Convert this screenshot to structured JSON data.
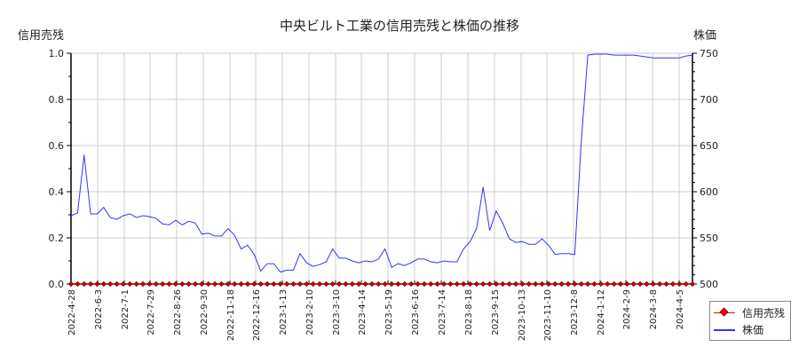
{
  "title": "中央ビルト工業の信用売残と株価の推移",
  "left_axis_label": "信用売残",
  "right_axis_label": "株価",
  "legend": [
    {
      "label": "信用売残",
      "color": "#ff0000",
      "marker": "diamond"
    },
    {
      "label": "株価",
      "color": "#3333ff",
      "marker": "line"
    }
  ],
  "chart_data": {
    "type": "line",
    "title": "中央ビルト工業の信用売残と株価の推移",
    "xlabel": "",
    "ylabel_left": "信用売残",
    "ylabel_right": "株価",
    "ylim_left": [
      0.0,
      1.0
    ],
    "ylim_right": [
      500,
      750
    ],
    "yticks_left": [
      "0.0",
      "0.2",
      "0.4",
      "0.6",
      "0.8",
      "1.0"
    ],
    "yticks_right": [
      "500",
      "550",
      "600",
      "650",
      "700",
      "750"
    ],
    "xtick_labels": [
      "2022-4-28",
      "2022-6-3",
      "2022-7-1",
      "2022-7-29",
      "2022-8-26",
      "2022-9-30",
      "2022-11-18",
      "2022-12-16",
      "2023-1-13",
      "2023-2-10",
      "2023-3-10",
      "2023-4-14",
      "2023-5-19",
      "2023-6-16",
      "2023-7-14",
      "2023-8-18",
      "2023-9-15",
      "2023-10-13",
      "2023-11-10",
      "2023-12-8",
      "2024-1-12",
      "2024-2-9",
      "2024-3-8",
      "2024-4-5"
    ],
    "grid": true,
    "legend_position": "bottom-right",
    "series": [
      {
        "name": "信用売残",
        "axis": "left",
        "color": "#ff0000",
        "values_note": "all weekly points at 0",
        "values": [
          0,
          0,
          0,
          0,
          0,
          0,
          0,
          0,
          0,
          0,
          0,
          0,
          0,
          0,
          0,
          0,
          0,
          0,
          0,
          0,
          0,
          0,
          0,
          0,
          0,
          0,
          0,
          0,
          0,
          0,
          0,
          0,
          0,
          0,
          0,
          0,
          0,
          0,
          0,
          0,
          0,
          0,
          0,
          0,
          0,
          0,
          0,
          0,
          0,
          0,
          0,
          0,
          0,
          0,
          0,
          0,
          0,
          0,
          0,
          0,
          0,
          0,
          0,
          0,
          0,
          0,
          0,
          0,
          0,
          0,
          0,
          0,
          0,
          0,
          0,
          0,
          0,
          0,
          0,
          0,
          0,
          0,
          0,
          0,
          0,
          0,
          0,
          0,
          0,
          0,
          0,
          0,
          0,
          0,
          0,
          0
        ]
      },
      {
        "name": "株価",
        "axis": "right",
        "color": "#3333ff",
        "values": [
          574,
          577,
          640,
          576,
          576,
          583,
          572,
          570,
          574,
          576,
          572,
          574,
          573,
          571,
          565,
          564,
          569,
          564,
          568,
          566,
          554,
          555,
          552,
          552,
          560,
          553,
          538,
          542,
          532,
          514,
          522,
          522,
          513,
          515,
          515,
          533,
          523,
          519,
          521,
          524,
          538,
          528,
          528,
          525,
          523,
          525,
          524,
          527,
          538,
          518,
          522,
          520,
          523,
          527,
          527,
          524,
          523,
          525,
          524,
          524,
          538,
          546,
          560,
          605,
          558,
          579,
          566,
          549,
          545,
          546,
          543,
          543,
          549,
          542,
          532,
          533,
          533,
          532,
          654,
          748,
          749,
          749,
          749,
          748,
          748,
          748,
          748,
          747,
          746,
          745,
          745,
          745,
          745,
          745,
          747,
          748
        ]
      }
    ]
  }
}
